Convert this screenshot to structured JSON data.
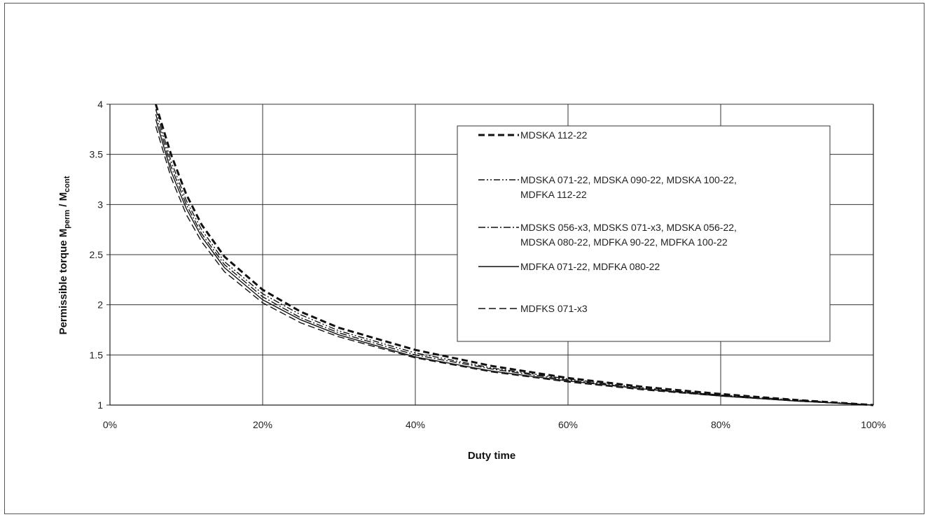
{
  "chart_data": {
    "type": "line",
    "title": "",
    "xlabel": "Duty time",
    "ylabel": {
      "base": "Permissible torque M",
      "sub1": "perm",
      "sep": " / M",
      "sub2": "cont"
    },
    "xlim": [
      0,
      100
    ],
    "ylim": [
      1,
      4
    ],
    "x_ticks": [
      "0%",
      "20%",
      "40%",
      "60%",
      "80%",
      "100%"
    ],
    "x_tick_values": [
      0,
      20,
      40,
      60,
      80,
      100
    ],
    "y_ticks": [
      "1",
      "1.5",
      "2",
      "2.5",
      "3",
      "3.5",
      "4"
    ],
    "y_tick_values": [
      1,
      1.5,
      2,
      2.5,
      3,
      3.5,
      4
    ],
    "grid": true,
    "legend_position": "top-right",
    "x_unit": "%",
    "series": [
      {
        "name": "MDSKA 112-22",
        "legend_lines": [
          "MDSKA 112-22"
        ],
        "style": "dashed-bold",
        "x": [
          6,
          8,
          10,
          12,
          15,
          20,
          25,
          30,
          40,
          50,
          60,
          70,
          80,
          90,
          100
        ],
        "y": [
          4.0,
          3.5,
          3.1,
          2.8,
          2.48,
          2.15,
          1.93,
          1.77,
          1.55,
          1.39,
          1.27,
          1.18,
          1.11,
          1.05,
          1.0
        ]
      },
      {
        "name": "MDSKA 071-22, MDSKA 090-22, MDSKA 100-22, MDFKA 112-22",
        "legend_lines": [
          "MDSKA 071-22, MDSKA 090-22, MDSKA 100-22,",
          "MDFKA 112-22"
        ],
        "style": "dash-dot-dot",
        "x": [
          6,
          8,
          10,
          12,
          15,
          20,
          25,
          30,
          40,
          50,
          60,
          70,
          80,
          90,
          100
        ],
        "y": [
          3.95,
          3.43,
          3.04,
          2.75,
          2.43,
          2.11,
          1.9,
          1.74,
          1.52,
          1.37,
          1.26,
          1.17,
          1.1,
          1.05,
          1.0
        ]
      },
      {
        "name": "MDSKS 056-x3, MDSKS 071-x3, MDSKA 056-22, MDSKA 080-22, MDFKA 90-22, MDFKA 100-22",
        "legend_lines": [
          "MDSKS 056-x3, MDSKS 071-x3, MDSKA 056-22,",
          "MDSKA 080-22, MDFKA 90-22, MDFKA 100-22"
        ],
        "style": "dash-dot",
        "x": [
          6,
          8,
          10,
          12,
          15,
          20,
          25,
          30,
          40,
          50,
          60,
          70,
          80,
          90,
          100
        ],
        "y": [
          3.9,
          3.38,
          3.0,
          2.71,
          2.4,
          2.08,
          1.87,
          1.72,
          1.5,
          1.36,
          1.25,
          1.16,
          1.1,
          1.04,
          1.0
        ]
      },
      {
        "name": "MDFKA 071-22, MDFKA 080-22",
        "legend_lines": [
          "MDFKA 071-22, MDFKA 080-22"
        ],
        "style": "solid",
        "x": [
          6,
          8,
          10,
          12,
          15,
          20,
          25,
          30,
          40,
          50,
          60,
          70,
          80,
          90,
          100
        ],
        "y": [
          3.85,
          3.33,
          2.96,
          2.68,
          2.37,
          2.05,
          1.85,
          1.7,
          1.48,
          1.34,
          1.24,
          1.16,
          1.09,
          1.04,
          1.0
        ]
      },
      {
        "name": "MDFKS 071-x3",
        "legend_lines": [
          "MDFKS 071-x3"
        ],
        "style": "dashed-thin",
        "x": [
          6,
          8,
          10,
          12,
          15,
          20,
          25,
          30,
          40,
          50,
          60,
          70,
          80,
          90,
          100
        ],
        "y": [
          3.78,
          3.27,
          2.9,
          2.63,
          2.33,
          2.02,
          1.82,
          1.68,
          1.47,
          1.33,
          1.23,
          1.15,
          1.09,
          1.04,
          1.0
        ]
      }
    ]
  }
}
